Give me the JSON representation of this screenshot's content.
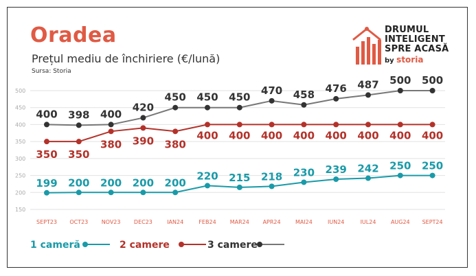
{
  "title": "Oradea",
  "subtitle": "Prețul mediu de închiriere (€/lună)",
  "source": "Sursa: Storia",
  "brand": {
    "line1": "DRUMUL",
    "line2": "INTELIGENT",
    "line3": "SPRE ACASĂ",
    "by": "by",
    "name": "storia"
  },
  "colors": {
    "accent": "#e05a44",
    "series1": "#1a9aa8",
    "series2": "#b3322a",
    "series3": "#777777",
    "marker3": "#333333",
    "grid": "#e2e2e2"
  },
  "chart_data": {
    "type": "line",
    "categories": [
      "SEPT23",
      "OCT23",
      "NOV23",
      "DEC23",
      "IAN24",
      "FEB24",
      "MAR24",
      "APR24",
      "MAI24",
      "IUN24",
      "IUL24",
      "AUG24",
      "SEPT24"
    ],
    "yticks": [
      150,
      200,
      250,
      300,
      350,
      400,
      450,
      500
    ],
    "ylim": [
      150,
      500
    ],
    "grid": true,
    "legend_position": "bottom-left",
    "series": [
      {
        "name": "1 cameră",
        "values": [
          199,
          200,
          200,
          200,
          200,
          220,
          215,
          218,
          230,
          239,
          242,
          250,
          250
        ]
      },
      {
        "name": "2 camere",
        "values": [
          350,
          350,
          380,
          390,
          380,
          400,
          400,
          400,
          400,
          400,
          400,
          400,
          400
        ]
      },
      {
        "name": "3 camere",
        "values": [
          400,
          398,
          400,
          420,
          450,
          450,
          450,
          470,
          458,
          476,
          487,
          500,
          500
        ]
      }
    ]
  }
}
